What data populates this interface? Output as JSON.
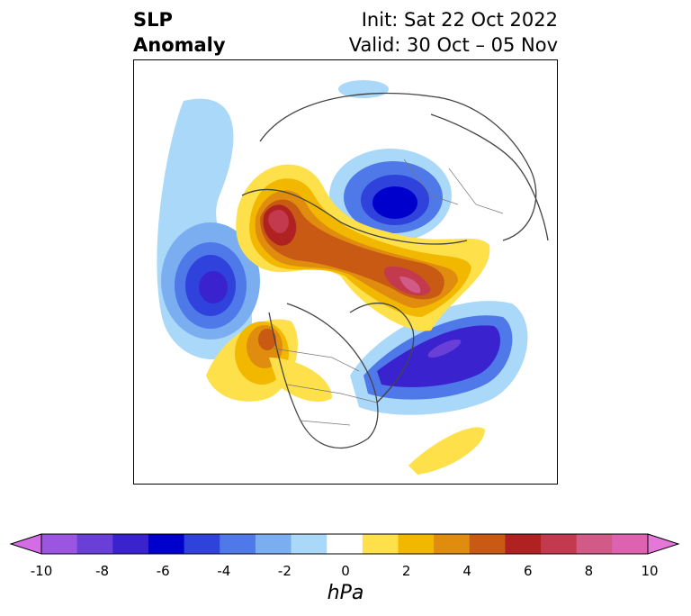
{
  "title": {
    "left_line1": "SLP",
    "left_line2": "Anomaly",
    "right_line1": "Init: Sat 22 Oct 2022",
    "right_line2": "Valid: 30 Oct – 05 Nov"
  },
  "colorbar": {
    "unit_label": "hPa",
    "ticks": [
      "-10",
      "-8",
      "-6",
      "-4",
      "-2",
      "0",
      "2",
      "4",
      "6",
      "8",
      "10"
    ],
    "colors": [
      "#9b55e0",
      "#6a3fd8",
      "#3a23cf",
      "#0000cd",
      "#2f42dc",
      "#4f78e8",
      "#7aaef0",
      "#aad8f8",
      "#ffffff",
      "#fde04a",
      "#f2b800",
      "#e08c0f",
      "#c85a14",
      "#b02222",
      "#c33a4e",
      "#d15a86",
      "#dd63b0"
    ],
    "under_color": "#d46ce6",
    "over_color": "#e477d8"
  }
}
